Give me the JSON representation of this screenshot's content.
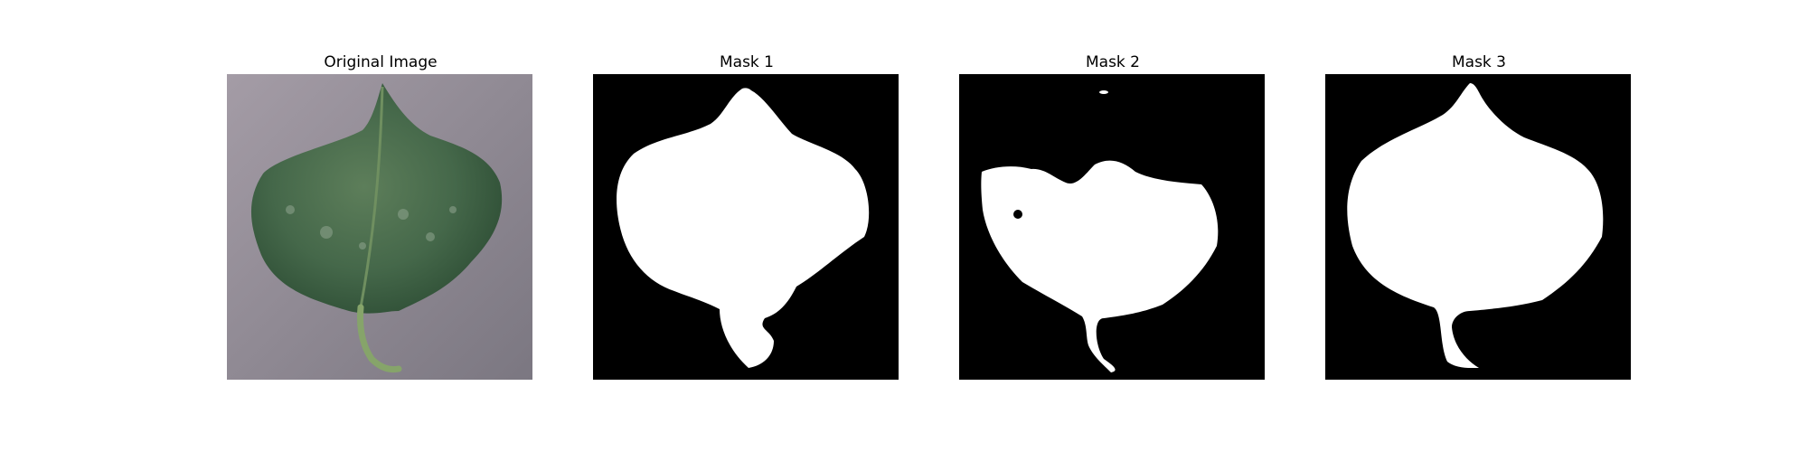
{
  "figure": {
    "panels": [
      {
        "title": "Original Image",
        "kind": "photo"
      },
      {
        "title": "Mask 1",
        "kind": "mask"
      },
      {
        "title": "Mask 2",
        "kind": "mask"
      },
      {
        "title": "Mask 3",
        "kind": "mask"
      }
    ]
  },
  "colors": {
    "background": "#ffffff",
    "mask_background": "#000000",
    "mask_foreground": "#ffffff",
    "photo_background": "#8f8a91",
    "leaf_dark": "#3a5e3c",
    "leaf_light": "#5b7f59",
    "stem": "#7a9a5a"
  }
}
